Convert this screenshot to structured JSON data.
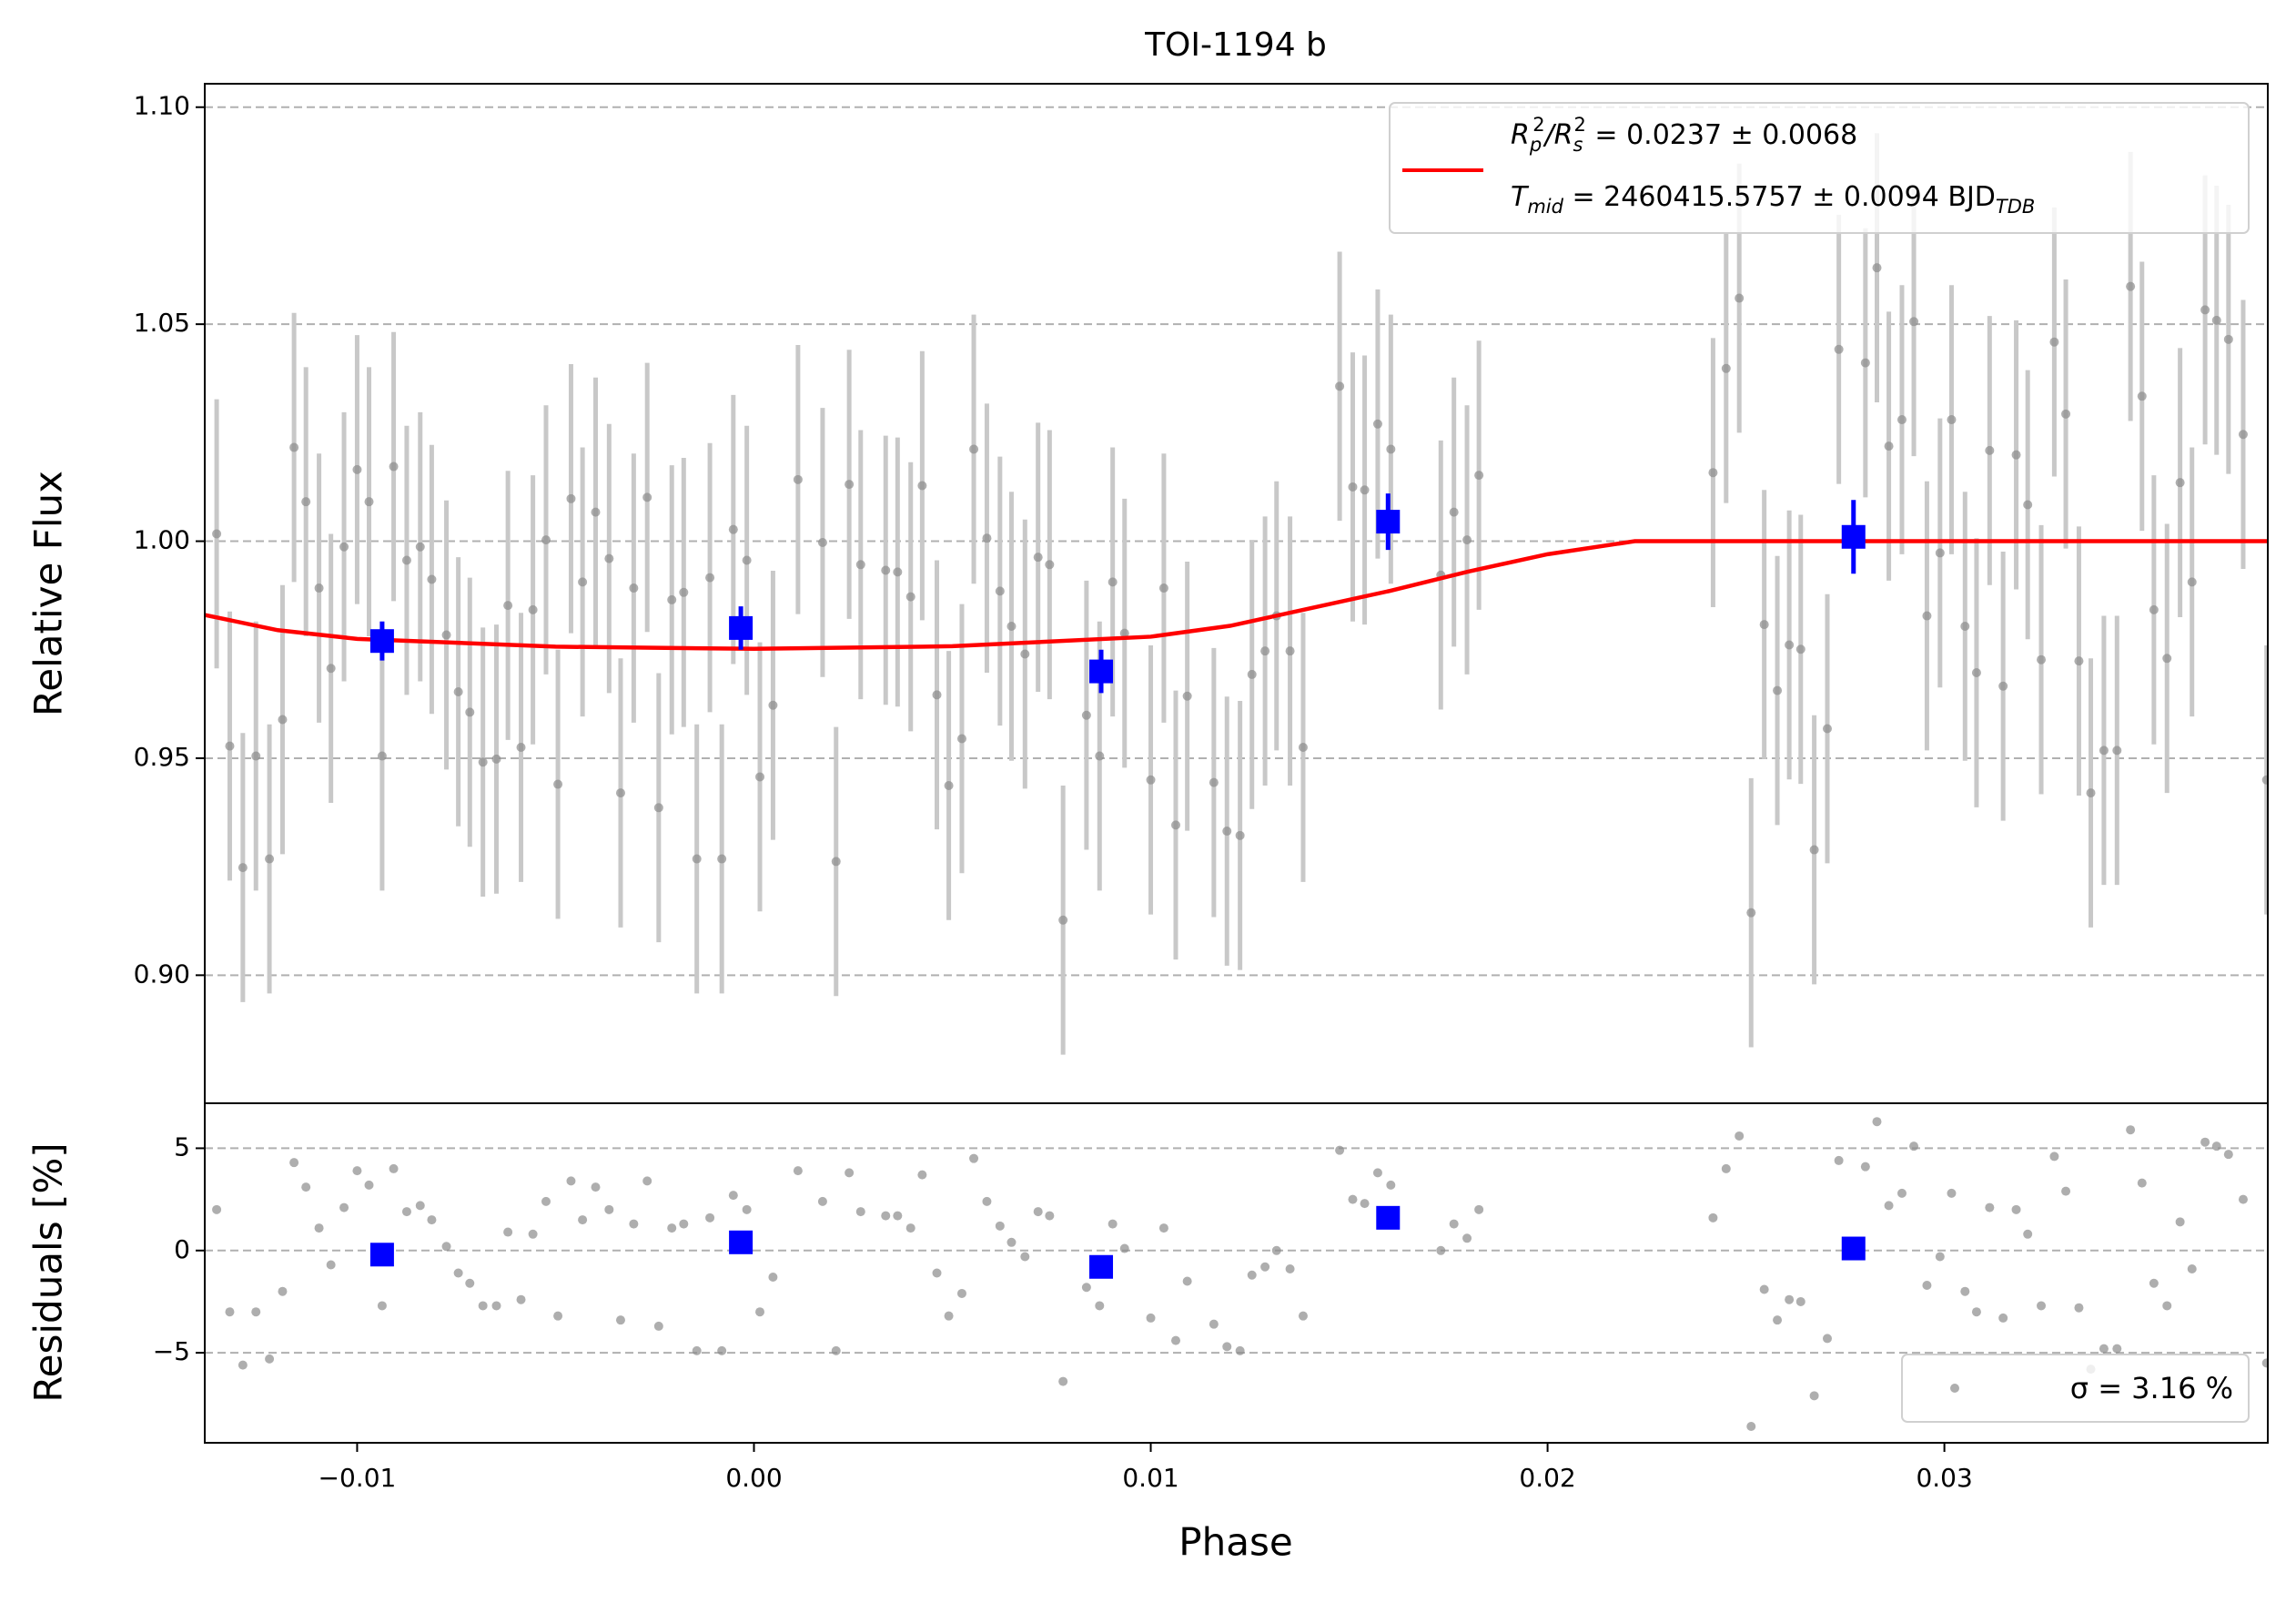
{
  "chart_data": [
    {
      "type": "scatter",
      "title": "TOI-1194 b",
      "ylabel": "Relative Flux",
      "xlim": [
        -0.01384,
        0.03815
      ],
      "ylim": [
        0.8705,
        1.1054
      ],
      "yticks": [
        {
          "value": 0.9,
          "label": "0.90"
        },
        {
          "value": 0.95,
          "label": "0.95"
        },
        {
          "value": 1.0,
          "label": "1.00"
        },
        {
          "value": 1.05,
          "label": "1.05"
        },
        {
          "value": 1.1,
          "label": "1.10"
        }
      ],
      "grid": true,
      "legend": "upper right",
      "model_label": [
        [
          "R",
          "p",
          "2",
          "/R",
          "s",
          "2",
          " = 0.0237 ± 0.0068"
        ],
        [
          "T",
          "mid",
          " = 2460415.5757 ± 0.0094 BJD",
          "TDB"
        ]
      ],
      "model": {
        "color": "#ff0000",
        "x": [
          -0.01384,
          -0.012,
          -0.01,
          -0.005,
          0.0,
          0.005,
          0.01,
          0.012,
          0.014,
          0.016,
          0.018,
          0.02,
          0.0222,
          0.03815
        ],
        "values": [
          0.983,
          0.9795,
          0.9775,
          0.9757,
          0.9752,
          0.9758,
          0.978,
          0.9805,
          0.9845,
          0.9885,
          0.993,
          0.997,
          1.0,
          1.0
        ]
      },
      "binned": {
        "color": "#0000ff",
        "x": [
          -0.00937,
          -0.00033,
          0.00875,
          0.01598,
          0.02771
        ],
        "values": [
          0.977,
          0.98,
          0.97,
          1.0045,
          1.001
        ],
        "yerr": [
          0.0045,
          0.005,
          0.005,
          0.0065,
          0.0085
        ]
      },
      "data": {
        "color": "#8c8c8c",
        "errcolor": "#c8c8c8",
        "yerr": 0.031,
        "x": [
          -0.01354,
          -0.01321,
          -0.01288,
          -0.01255,
          -0.01221,
          -0.01188,
          -0.01159,
          -0.01129,
          -0.01096,
          -0.01066,
          -0.01033,
          -0.01,
          -0.0097,
          -0.00937,
          -0.00908,
          -0.00875,
          -0.00841,
          -0.00812,
          -0.00775,
          -0.00745,
          -0.00716,
          -0.00683,
          -0.00649,
          -0.0062,
          -0.00587,
          -0.00557,
          -0.00524,
          -0.00494,
          -0.00461,
          -0.00432,
          -0.00399,
          -0.00365,
          -0.00336,
          -0.00303,
          -0.00269,
          -0.0024,
          -0.00207,
          -0.00177,
          -0.00144,
          -0.00111,
          -0.00081,
          -0.00052,
          -0.00018,
          0.00015,
          0.00048,
          0.00111,
          0.00173,
          0.00207,
          0.0024,
          0.00269,
          0.00332,
          0.00362,
          0.00395,
          0.00424,
          0.00461,
          0.00491,
          0.00524,
          0.00554,
          0.00587,
          0.0062,
          0.00649,
          0.00683,
          0.00716,
          0.00745,
          0.00779,
          0.00838,
          0.00871,
          0.00904,
          0.00934,
          0.01,
          0.01033,
          0.01063,
          0.01092,
          0.01159,
          0.01192,
          0.01225,
          0.01255,
          0.01288,
          0.01317,
          0.01351,
          0.01384,
          0.01476,
          0.01509,
          0.01539,
          0.01572,
          0.01605,
          0.01731,
          0.01764,
          0.01797,
          0.01827,
          0.02417,
          0.0245,
          0.02483,
          0.02513,
          0.02546,
          0.02579,
          0.02609,
          0.02638,
          0.02672,
          0.02705,
          0.02734,
          0.02801,
          0.0283,
          0.0286,
          0.02893,
          0.02923,
          0.02956,
          0.02989,
          0.03018,
          0.03052,
          0.03081,
          0.03114,
          0.03148,
          0.03181,
          0.0321,
          0.03244,
          0.03277,
          0.03306,
          0.03339,
          0.03369,
          0.03402,
          0.03435,
          0.03469,
          0.03498,
          0.03528,
          0.03561,
          0.03594,
          0.03624,
          0.03657,
          0.03686,
          0.03716,
          0.03753,
          0.03812
        ],
        "values": [
          1.0017,
          0.9528,
          0.9248,
          0.9505,
          0.9268,
          0.9589,
          1.0216,
          1.0091,
          0.9892,
          0.9707,
          0.9987,
          1.0165,
          1.0091,
          0.9505,
          1.0172,
          0.9956,
          0.9987,
          0.9912,
          0.9784,
          0.9653,
          0.9606,
          0.9491,
          0.9498,
          0.9852,
          0.9525,
          0.9842,
          1.0003,
          0.944,
          1.0098,
          0.9906,
          1.0067,
          0.996,
          0.942,
          0.9892,
          1.0101,
          0.9386,
          0.9865,
          0.9882,
          0.9268,
          0.9916,
          0.9268,
          1.0027,
          0.9956,
          0.9457,
          0.9622,
          1.0142,
          0.9997,
          0.9262,
          1.0131,
          0.9946,
          0.9933,
          0.9929,
          0.9872,
          1.0128,
          0.9646,
          0.9437,
          0.9545,
          1.0212,
          1.0007,
          0.9885,
          0.9804,
          0.974,
          0.9963,
          0.9946,
          0.9127,
          0.9599,
          0.9505,
          0.9906,
          0.9788,
          0.945,
          0.9892,
          0.9346,
          0.9643,
          0.9444,
          0.9332,
          0.9322,
          0.9693,
          0.9747,
          0.9828,
          0.9747,
          0.9525,
          1.0357,
          1.0125,
          1.0118,
          1.027,
          1.0212,
          0.9922,
          1.0067,
          1.0003,
          1.0152,
          1.0158,
          1.0398,
          1.056,
          0.9144,
          0.9808,
          0.9656,
          0.9761,
          0.9751,
          0.9289,
          0.9568,
          1.0442,
          1.0411,
          1.063,
          1.0219,
          1.028,
          1.0506,
          0.9828,
          0.9973,
          1.028,
          0.9804,
          0.9697,
          1.0209,
          0.9666,
          1.0199,
          1.0084,
          0.9727,
          1.0459,
          1.0293,
          0.9724,
          0.942,
          0.9518,
          0.9518,
          1.0587,
          1.0334,
          0.9842,
          0.973,
          1.0135,
          0.9906,
          1.0533,
          1.0509,
          1.0465,
          1.0246,
          0.945
        ]
      }
    },
    {
      "type": "scatter",
      "xlabel": "Phase",
      "ylabel": "Residuals [%]",
      "xlim": [
        -0.01384,
        0.03815
      ],
      "ylim": [
        -9.4,
        7.2
      ],
      "xticks": [
        {
          "value": -0.01,
          "label": "−0.01"
        },
        {
          "value": 0.0,
          "label": "0.00"
        },
        {
          "value": 0.01,
          "label": "0.01"
        },
        {
          "value": 0.02,
          "label": "0.02"
        },
        {
          "value": 0.03,
          "label": "0.03"
        }
      ],
      "yticks": [
        {
          "value": -5,
          "label": "−5"
        },
        0,
        5
      ],
      "grid": true,
      "legend": "lower right",
      "legend_label": "σ = 3.16 %",
      "binned": {
        "color": "#0000ff",
        "values": [
          -0.2,
          0.4,
          -0.8,
          1.6,
          0.1
        ]
      },
      "data": {
        "color": "#8c8c8c",
        "values": [
          2.0,
          -3.0,
          -5.6,
          -3.0,
          -5.3,
          -2.0,
          4.3,
          3.1,
          1.1,
          -0.7,
          2.1,
          3.9,
          3.2,
          -2.7,
          4.0,
          1.9,
          2.2,
          1.5,
          0.2,
          -1.1,
          -1.6,
          -2.7,
          -2.7,
          0.9,
          -2.4,
          0.8,
          2.4,
          -3.2,
          3.4,
          1.5,
          3.1,
          2.0,
          -3.4,
          1.3,
          3.4,
          -3.7,
          1.1,
          1.3,
          -4.9,
          1.6,
          -4.9,
          2.7,
          2.0,
          -3.0,
          -1.3,
          3.9,
          2.4,
          -4.9,
          3.8,
          1.9,
          1.7,
          1.7,
          1.1,
          3.7,
          -1.1,
          -3.2,
          -2.1,
          4.5,
          2.4,
          1.2,
          0.4,
          -0.3,
          1.9,
          1.7,
          -6.4,
          -1.8,
          -2.7,
          1.3,
          0.1,
          -3.3,
          1.1,
          -4.4,
          -1.5,
          -3.6,
          -4.7,
          -4.9,
          -1.2,
          -0.8,
          0.0,
          -0.9,
          -3.2,
          4.9,
          2.5,
          2.3,
          3.8,
          3.2,
          0.0,
          1.3,
          0.6,
          2.0,
          1.6,
          4.0,
          5.6,
          -8.6,
          -1.9,
          -3.4,
          -2.4,
          -2.5,
          -7.1,
          -4.3,
          4.4,
          4.1,
          6.3,
          2.2,
          2.8,
          5.1,
          -1.7,
          -0.3,
          2.8,
          -2.0,
          -3.0,
          2.1,
          -3.3,
          2.0,
          0.8,
          -2.7,
          4.6,
          2.9,
          -2.8,
          -5.8,
          -4.8,
          -4.8,
          5.9,
          3.3,
          -1.6,
          -2.7,
          1.4,
          -0.9,
          5.3,
          5.1,
          4.7,
          2.5,
          -5.5
        ]
      }
    }
  ]
}
